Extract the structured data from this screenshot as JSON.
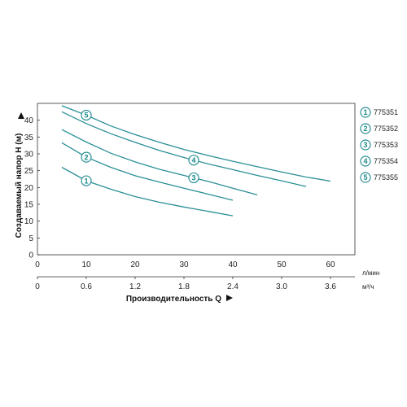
{
  "chart_data": {
    "type": "line",
    "ylabel": "Создаваемый напор H (м)",
    "xlabel": "Производительность Q",
    "x_unit": "л/мин",
    "x2_unit": "м³/ч",
    "xlim": [
      0,
      65
    ],
    "ylim": [
      0,
      45
    ],
    "x_ticks": [
      0,
      10,
      20,
      30,
      40,
      50,
      60
    ],
    "x2_ticks": [
      "0",
      "0.6",
      "1.2",
      "1.8",
      "2.4",
      "3.0",
      "3.6"
    ],
    "y_ticks": [
      0,
      5,
      10,
      15,
      20,
      25,
      30,
      35,
      40
    ],
    "grid": false,
    "legend_position": "right",
    "series": [
      {
        "name": "775351",
        "marker": "1",
        "marker_at": 10,
        "color": "#2a8f96",
        "x": [
          5,
          10,
          15,
          20,
          25,
          30,
          35,
          40
        ],
        "y": [
          26.0,
          22.0,
          19.5,
          17.3,
          15.6,
          14.2,
          12.9,
          11.6
        ]
      },
      {
        "name": "775352",
        "marker": "2",
        "marker_at": 10,
        "color": "#2a8f96",
        "x": [
          5,
          10,
          15,
          20,
          25,
          30,
          35,
          40
        ],
        "y": [
          33.3,
          29.0,
          26.0,
          23.5,
          21.6,
          19.8,
          18.0,
          16.2
        ]
      },
      {
        "name": "775353",
        "marker": "3",
        "marker_at": 32,
        "color": "#2a8f96",
        "x": [
          5,
          10,
          15,
          20,
          25,
          30,
          35,
          40,
          45
        ],
        "y": [
          37.2,
          33.5,
          30.2,
          27.6,
          25.4,
          23.6,
          21.8,
          19.8,
          17.8
        ]
      },
      {
        "name": "775354",
        "marker": "4",
        "marker_at": 32,
        "color": "#2a8f96",
        "x": [
          5,
          10,
          15,
          20,
          25,
          30,
          35,
          40,
          45,
          50,
          55
        ],
        "y": [
          42.5,
          39.0,
          36.0,
          33.4,
          31.0,
          28.9,
          27.0,
          25.3,
          23.6,
          22.0,
          20.3
        ]
      },
      {
        "name": "775355",
        "marker": "5",
        "marker_at": 10,
        "color": "#2a8f96",
        "x": [
          5,
          10,
          15,
          20,
          25,
          30,
          35,
          40,
          45,
          50,
          55,
          60
        ],
        "y": [
          44.3,
          41.5,
          38.3,
          35.7,
          33.4,
          31.3,
          29.5,
          27.8,
          26.2,
          24.6,
          23.1,
          21.9
        ]
      }
    ]
  }
}
